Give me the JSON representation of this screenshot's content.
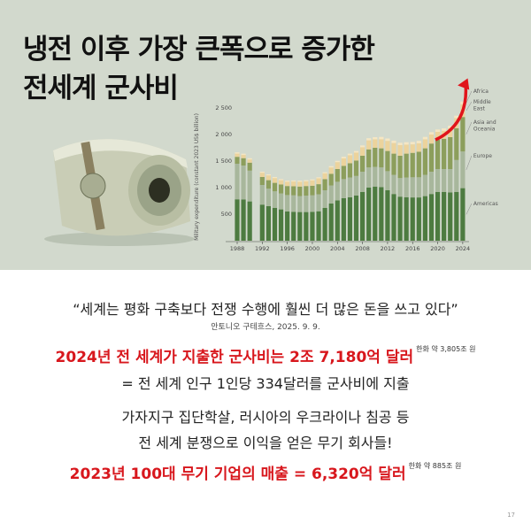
{
  "title_lines": [
    "냉전 이후 가장 큰폭으로 증가한",
    "전세계 군사비"
  ],
  "quote": "“세계는 평화 구축보다 전쟁 수행에 훨씬 더 많은 돈을 쓰고 있다”",
  "quote_source": "안토니오 구테흐스, 2025. 9. 9.",
  "line1": {
    "main": "2024년 전 세계가 지출한 군사비는 2조 7,180억 달러",
    "note": "한화 약 3,805조 원"
  },
  "line2": "= 전 세계 인구 1인당 334달러를 군사비에 지출",
  "line3": "가자지구 집단학살, 러시아의 우크라이나 침공 등",
  "line4": "전 세계 분쟁으로 이익을 얻은 무기 회사들!",
  "line5": {
    "main": "2023년 100대 무기 기업의 매출 = 6,320억 달러",
    "note": "한화 약 885조 원"
  },
  "page_number": "17",
  "colors": {
    "background_top": "#d2d9cd",
    "highlight": "#d8171d",
    "arrow": "#e0141b"
  },
  "chart_data": {
    "type": "bar",
    "stacked": true,
    "ylabel": "Military expenditure (constant 2023 US$ billion)",
    "ylim": [
      0,
      2700
    ],
    "yticks": [
      "500",
      "1 000",
      "1 500",
      "2 000",
      "2 500"
    ],
    "ytick_values": [
      500,
      1000,
      1500,
      2000,
      2500
    ],
    "xticks": [
      "1988",
      "1992",
      "1996",
      "2000",
      "2004",
      "2008",
      "2012",
      "2016",
      "2020",
      "2024"
    ],
    "grid": false,
    "legend": "right",
    "x": [
      1988,
      1989,
      1990,
      1992,
      1993,
      1994,
      1995,
      1996,
      1997,
      1998,
      1999,
      2000,
      2001,
      2002,
      2003,
      2004,
      2005,
      2006,
      2007,
      2008,
      2009,
      2010,
      2011,
      2012,
      2013,
      2014,
      2015,
      2016,
      2017,
      2018,
      2019,
      2020,
      2021,
      2022,
      2023,
      2024
    ],
    "series": [
      {
        "name": "Americas",
        "color": "#4d7b40",
        "values": [
          780,
          775,
          740,
          680,
          650,
          620,
          590,
          550,
          545,
          540,
          540,
          545,
          555,
          620,
          700,
          760,
          800,
          820,
          850,
          920,
          1000,
          1020,
          1010,
          950,
          880,
          830,
          820,
          815,
          815,
          840,
          880,
          920,
          920,
          910,
          920,
          990
        ]
      },
      {
        "name": "Europe",
        "color": "#a8b79c",
        "values": [
          670,
          640,
          580,
          370,
          330,
          310,
          300,
          310,
          310,
          300,
          310,
          310,
          320,
          330,
          340,
          350,
          360,
          370,
          370,
          380,
          380,
          370,
          370,
          360,
          360,
          350,
          370,
          380,
          380,
          400,
          420,
          430,
          430,
          440,
          600,
          690
        ]
      },
      {
        "name": "Asia and Oceania",
        "color": "#8c9e5c",
        "values": [
          130,
          140,
          150,
          150,
          160,
          160,
          170,
          170,
          170,
          180,
          180,
          180,
          190,
          210,
          220,
          240,
          250,
          270,
          290,
          300,
          340,
          360,
          360,
          380,
          400,
          420,
          450,
          460,
          480,
          500,
          530,
          550,
          570,
          600,
          600,
          650
        ]
      },
      {
        "name": "Middle East",
        "color": "#ecd39c",
        "values": [
          60,
          60,
          60,
          80,
          90,
          90,
          80,
          80,
          90,
          90,
          90,
          100,
          110,
          110,
          120,
          130,
          140,
          150,
          150,
          160,
          170,
          160,
          170,
          190,
          200,
          200,
          170,
          160,
          160,
          170,
          170,
          150,
          150,
          170,
          190,
          240
        ]
      },
      {
        "name": "Africa",
        "color": "#f5e6c3",
        "values": [
          24,
          24,
          24,
          20,
          20,
          20,
          20,
          20,
          20,
          20,
          20,
          20,
          20,
          20,
          25,
          25,
          30,
          30,
          30,
          35,
          40,
          40,
          45,
          45,
          45,
          45,
          45,
          45,
          45,
          45,
          45,
          45,
          45,
          45,
          45,
          52
        ]
      }
    ]
  }
}
